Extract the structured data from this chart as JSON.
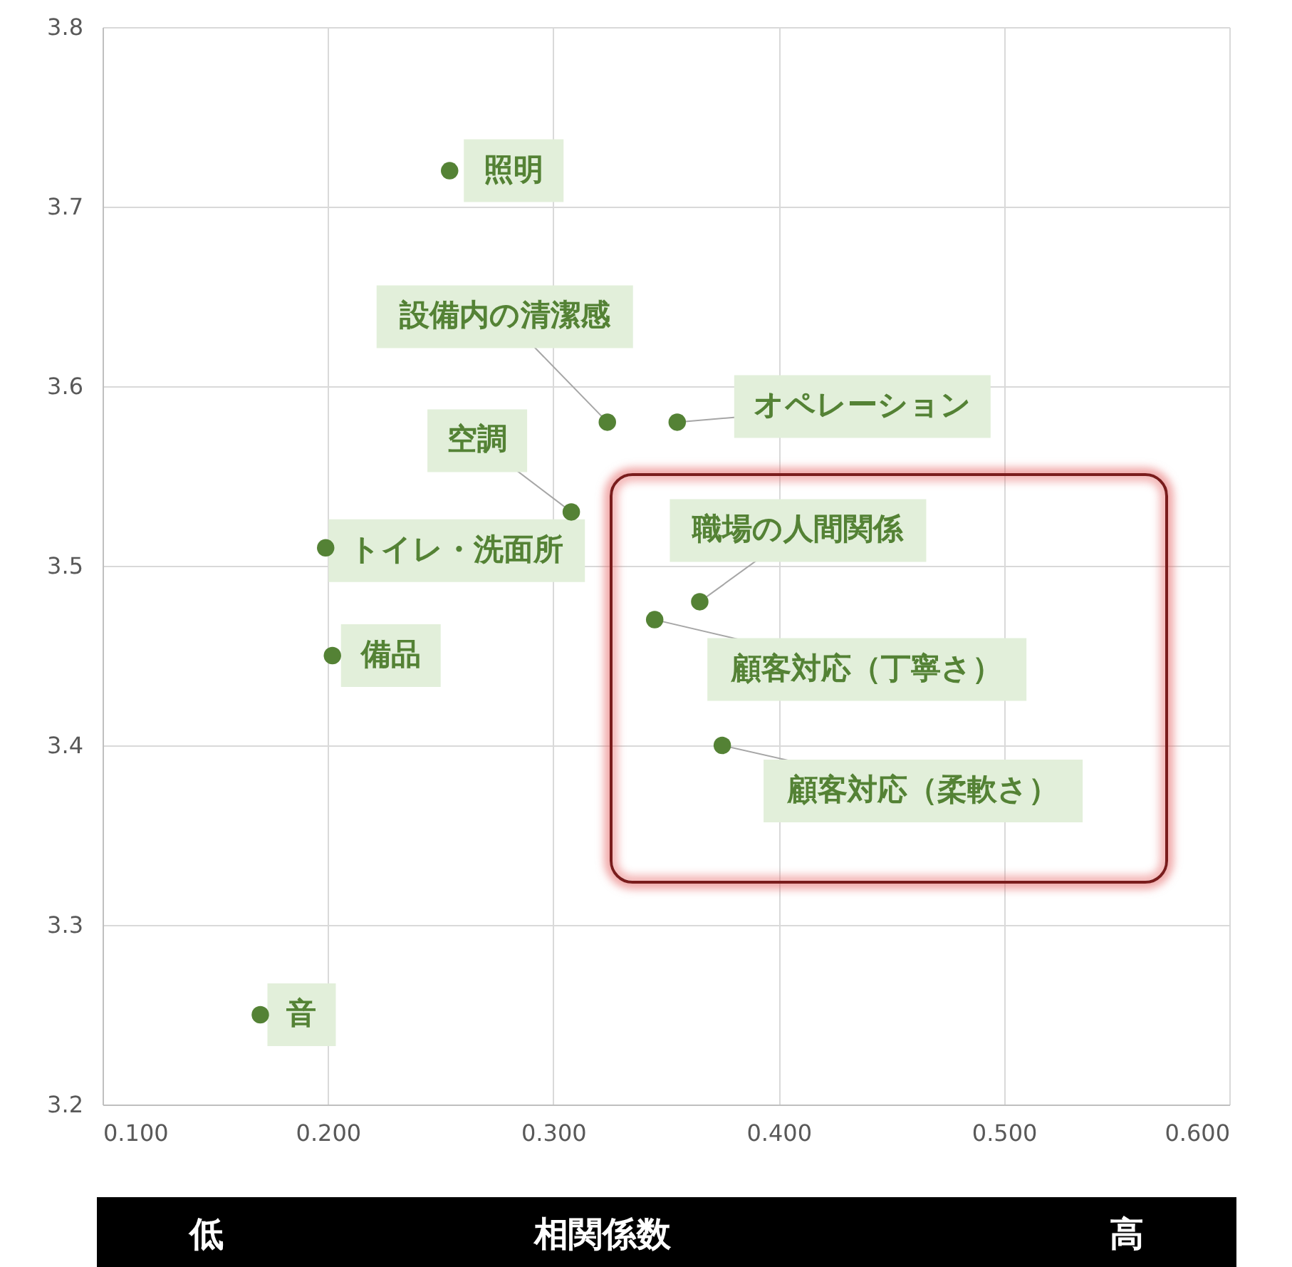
{
  "chart_data": {
    "type": "scatter",
    "xlabel": "相関係数",
    "x": [
      0.254,
      0.324,
      0.355,
      0.308,
      0.199,
      0.202,
      0.365,
      0.345,
      0.375,
      0.17
    ],
    "values": [
      3.72,
      3.58,
      3.58,
      3.53,
      3.51,
      3.45,
      3.48,
      3.47,
      3.4,
      3.25
    ],
    "color": "#548235",
    "marker": "circle",
    "xlim": [
      0.1,
      0.6
    ],
    "ylim": [
      3.2,
      3.8
    ],
    "xticks": [
      {
        "value": 0.1,
        "label": "0.100"
      },
      {
        "value": 0.2,
        "label": "0.200"
      },
      {
        "value": 0.3,
        "label": "0.300"
      },
      {
        "value": 0.4,
        "label": "0.400"
      },
      {
        "value": 0.5,
        "label": "0.500"
      },
      {
        "value": 0.6,
        "label": "0.600"
      }
    ],
    "yticks": [
      3.2,
      3.3,
      3.4,
      3.5,
      3.6,
      3.7,
      3.8
    ],
    "grid": true,
    "annotations": [
      {
        "text": "照明",
        "x": 0.254,
        "y": 3.72
      },
      {
        "text": "設備内の清潔感",
        "x": 0.324,
        "y": 3.58
      },
      {
        "text": "オペレーション",
        "x": 0.355,
        "y": 3.58
      },
      {
        "text": "空調",
        "x": 0.308,
        "y": 3.53
      },
      {
        "text": "トイレ・洗面所",
        "x": 0.199,
        "y": 3.51
      },
      {
        "text": "備品",
        "x": 0.202,
        "y": 3.45
      },
      {
        "text": "職場の人間関係",
        "x": 0.365,
        "y": 3.48
      },
      {
        "text": "顧客対応（丁寧さ）",
        "x": 0.345,
        "y": 3.47
      },
      {
        "text": "顧客対応（柔軟さ）",
        "x": 0.375,
        "y": 3.4
      },
      {
        "text": "音",
        "x": 0.17,
        "y": 3.25
      },
      "低",
      "高"
    ]
  }
}
